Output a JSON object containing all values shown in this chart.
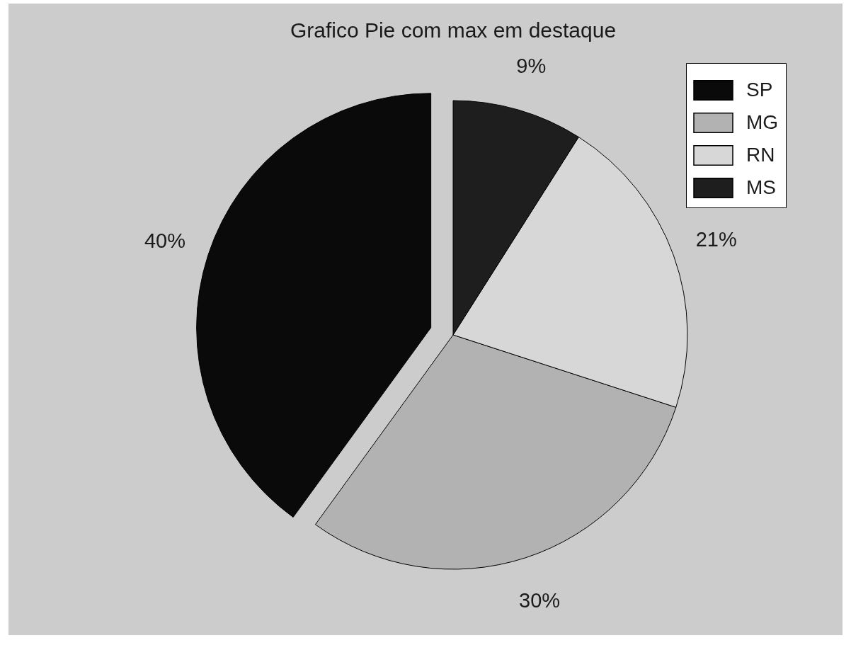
{
  "chart_data": {
    "type": "pie",
    "title": "Grafico Pie com max em destaque",
    "categories": [
      "SP",
      "MG",
      "RN",
      "MS"
    ],
    "values": [
      40,
      30,
      21,
      9
    ],
    "colors": [
      "#0a0a0a",
      "#b2b2b2",
      "#d7d7d7",
      "#1e1e1e"
    ],
    "value_labels": [
      "40%",
      "30%",
      "21%",
      "9%"
    ],
    "legend": "top right"
  }
}
